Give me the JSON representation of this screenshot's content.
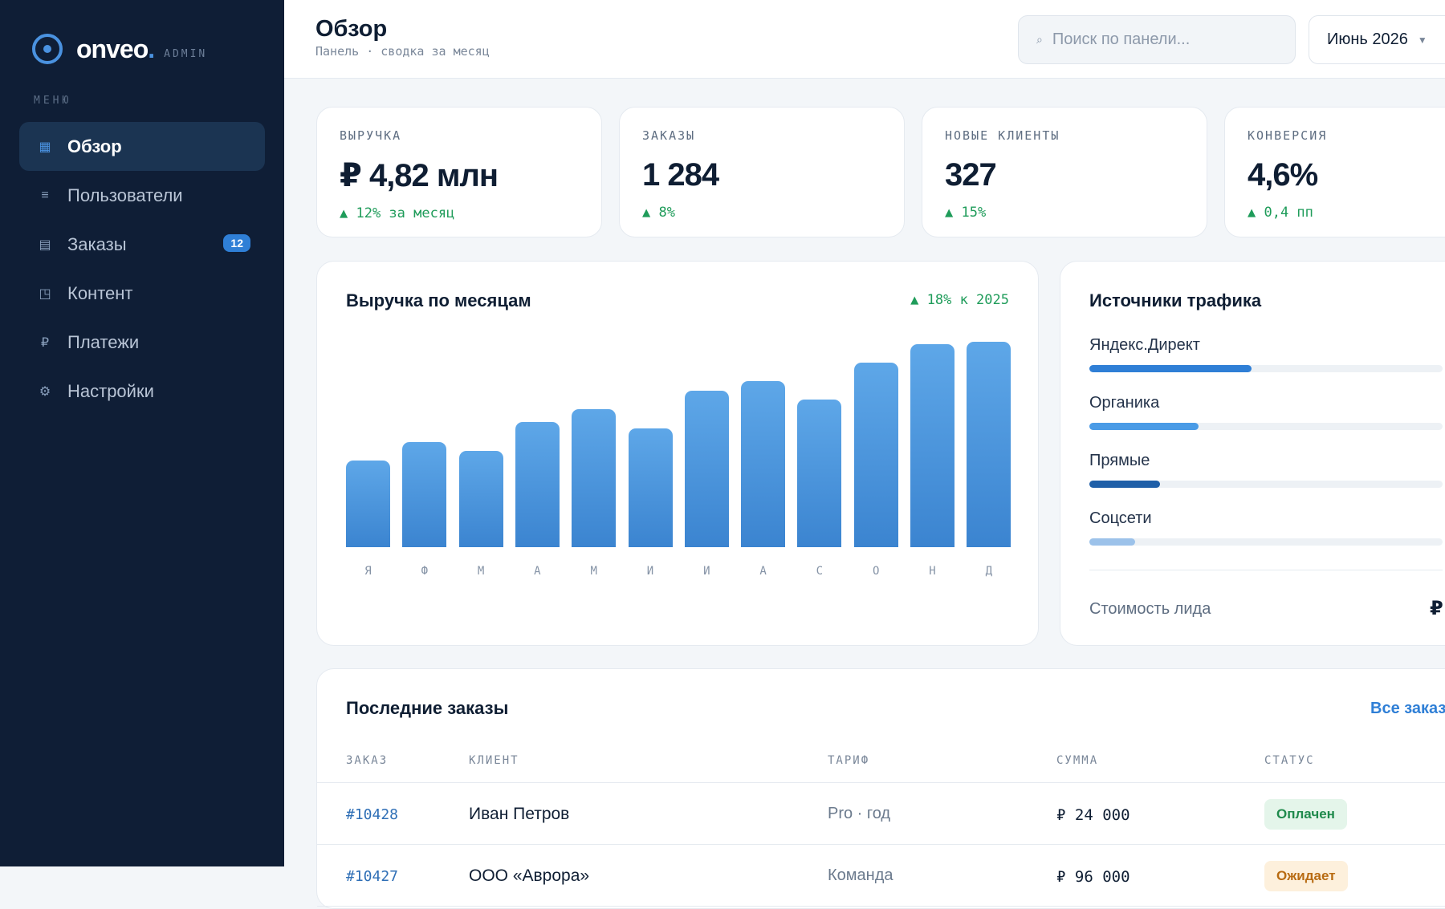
{
  "brand": {
    "name": "onveo",
    "dot": ".",
    "sub": "ADMIN"
  },
  "sidebar": {
    "menu_label": "МЕНЮ",
    "items": [
      {
        "label": "Обзор",
        "icon": "grid-icon",
        "glyph": "▦",
        "active": true
      },
      {
        "label": "Пользователи",
        "icon": "users-icon",
        "glyph": "≡"
      },
      {
        "label": "Заказы",
        "icon": "orders-icon",
        "glyph": "▤",
        "badge": "12"
      },
      {
        "label": "Контент",
        "icon": "content-icon",
        "glyph": "◳"
      },
      {
        "label": "Платежи",
        "icon": "ruble-icon",
        "glyph": "₽"
      },
      {
        "label": "Настройки",
        "icon": "gear-icon",
        "glyph": "⚙"
      }
    ]
  },
  "header": {
    "title": "Обзор",
    "subtitle": "Панель · сводка за месяц",
    "search_placeholder": "Поиск по панели...",
    "period": "Июнь 2026"
  },
  "kpis": [
    {
      "label": "ВЫРУЧКА",
      "value": "₽ 4,82 млн",
      "delta": "▲ 12% за месяц"
    },
    {
      "label": "ЗАКАЗЫ",
      "value": "1 284",
      "delta": "▲ 8%"
    },
    {
      "label": "НОВЫЕ КЛИЕНТЫ",
      "value": "327",
      "delta": "▲ 15%"
    },
    {
      "label": "КОНВЕРСИЯ",
      "value": "4,6%",
      "delta": "▲ 0,4 пп"
    }
  ],
  "revenue_chart": {
    "title": "Выручка по месяцам",
    "delta": "▲ 18% к 2025"
  },
  "chart_data": {
    "type": "bar",
    "title": "Выручка по месяцам",
    "categories": [
      "Я",
      "Ф",
      "М",
      "А",
      "М",
      "И",
      "И",
      "А",
      "С",
      "О",
      "Н",
      "Д"
    ],
    "values": [
      42,
      51,
      47,
      61,
      67,
      58,
      76,
      81,
      72,
      90,
      99,
      100
    ],
    "ylim": [
      0,
      100
    ],
    "grid": false
  },
  "traffic": {
    "title": "Источники трафика",
    "sources": [
      {
        "label": "Яндекс.Директ",
        "share": 0.46,
        "color": "#2f7fd6"
      },
      {
        "label": "Органика",
        "share": 0.31,
        "color": "#4a9be6"
      },
      {
        "label": "Прямые",
        "share": 0.2,
        "color": "#1f5fa8"
      },
      {
        "label": "Соцсети",
        "share": 0.13,
        "color": "#9cc2ea"
      }
    ],
    "lead_cost_label": "Стоимость лида",
    "lead_cost_value": "₽"
  },
  "orders": {
    "title": "Последние заказы",
    "all_link": "Все заказы",
    "columns": [
      "ЗАКАЗ",
      "КЛИЕНТ",
      "ТАРИФ",
      "СУММА",
      "СТАТУС"
    ],
    "rows": [
      {
        "id": "#10428",
        "client": "Иван Петров",
        "plan": "Pro · год",
        "sum": "₽ 24 000",
        "status": "Оплачен",
        "status_color": "#1f8a4c",
        "status_bg": "#e4f5ea"
      },
      {
        "id": "#10427",
        "client": "ООО «Аврора»",
        "plan": "Команда",
        "sum": "₽ 96 000",
        "status": "Ожидает",
        "status_color": "#b86b12",
        "status_bg": "#fdf0dc"
      }
    ]
  }
}
